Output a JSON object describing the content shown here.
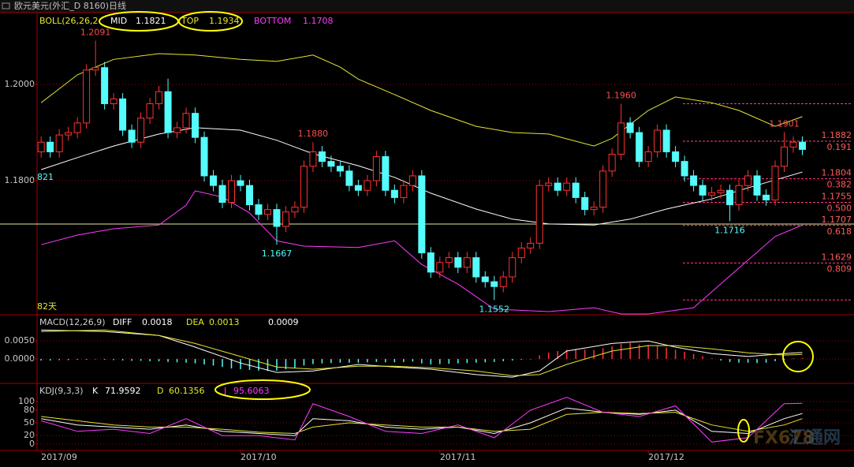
{
  "header": {
    "title": "欧元美元(外汇_D 8160)日线"
  },
  "watermark": [
    "FX678",
    "汇通网"
  ],
  "chart_data": [
    {
      "type": "candlestick",
      "indicator": "BOLL(26,26,2",
      "cursor_label": "821",
      "bar_count_label": "82天",
      "xlim": [
        -0.45,
        89.7
      ],
      "ylim": [
        1.1523,
        1.2146
      ],
      "yticks": [
        {
          "value": 1.2,
          "label": "1.2000"
        },
        {
          "value": 1.18,
          "label": "1.1800"
        }
      ],
      "grid": true,
      "up_color": "#ff3232",
      "down_color": "#54fcfc",
      "open": [
        1.186,
        1.188,
        1.186,
        1.1895,
        1.19,
        1.192,
        1.203,
        1.2035,
        1.196,
        1.197,
        1.1905,
        1.188,
        1.193,
        1.196,
        1.1985,
        1.19,
        1.191,
        1.194,
        1.189,
        1.181,
        1.179,
        1.1755,
        1.18,
        1.179,
        1.175,
        1.173,
        1.174,
        1.1705,
        1.1735,
        1.1745,
        1.183,
        1.186,
        1.184,
        1.183,
        1.182,
        1.179,
        1.178,
        1.18,
        1.185,
        1.178,
        1.1765,
        1.179,
        1.181,
        1.165,
        1.161,
        1.163,
        1.164,
        1.162,
        1.164,
        1.16,
        1.159,
        1.158,
        1.16,
        1.164,
        1.166,
        1.167,
        1.179,
        1.1795,
        1.178,
        1.1795,
        1.1765,
        1.174,
        1.1745,
        1.182,
        1.1855,
        1.192,
        1.19,
        1.184,
        1.186,
        1.1905,
        1.186,
        1.184,
        1.181,
        1.179,
        1.177,
        1.1775,
        1.178,
        1.175,
        1.179,
        1.181,
        1.177,
        1.176,
        1.183,
        1.187,
        1.188
      ],
      "high": [
        1.1892,
        1.1892,
        1.1907,
        1.1912,
        1.1932,
        1.2042,
        1.2091,
        1.2047,
        1.1982,
        1.1982,
        1.1917,
        1.1942,
        1.1972,
        1.1997,
        1.2012,
        1.1922,
        1.1952,
        1.1952,
        1.1902,
        1.1822,
        1.1802,
        1.1812,
        1.1812,
        1.1802,
        1.1762,
        1.1752,
        1.1752,
        1.1747,
        1.1757,
        1.1842,
        1.188,
        1.1872,
        1.1852,
        1.1842,
        1.1832,
        1.1802,
        1.1812,
        1.1862,
        1.1862,
        1.1792,
        1.1802,
        1.1822,
        1.1822,
        1.1662,
        1.1642,
        1.1652,
        1.1652,
        1.1652,
        1.1652,
        1.1612,
        1.1602,
        1.1612,
        1.1652,
        1.1672,
        1.1682,
        1.1802,
        1.1807,
        1.1807,
        1.1807,
        1.1807,
        1.1777,
        1.1757,
        1.1832,
        1.1867,
        1.196,
        1.1932,
        1.1912,
        1.1872,
        1.1917,
        1.1917,
        1.1872,
        1.1852,
        1.1822,
        1.1802,
        1.1787,
        1.1792,
        1.1792,
        1.1802,
        1.1822,
        1.1822,
        1.1782,
        1.1842,
        1.1901,
        1.1892,
        1.1892
      ],
      "low": [
        1.1848,
        1.1848,
        1.1848,
        1.1883,
        1.1888,
        1.1908,
        1.2018,
        1.1948,
        1.1948,
        1.1893,
        1.1868,
        1.1868,
        1.1918,
        1.1948,
        1.1888,
        1.1888,
        1.1898,
        1.1878,
        1.1798,
        1.1778,
        1.1743,
        1.1743,
        1.1778,
        1.1738,
        1.1718,
        1.1718,
        1.1667,
        1.1693,
        1.1723,
        1.1733,
        1.1818,
        1.1828,
        1.1818,
        1.1808,
        1.1778,
        1.1768,
        1.1768,
        1.1788,
        1.1768,
        1.1753,
        1.1753,
        1.1778,
        1.1638,
        1.1598,
        1.1598,
        1.1618,
        1.1608,
        1.1608,
        1.1588,
        1.1578,
        1.1552,
        1.1568,
        1.1588,
        1.1628,
        1.1648,
        1.1658,
        1.1778,
        1.1768,
        1.1768,
        1.1753,
        1.1728,
        1.1728,
        1.1733,
        1.1808,
        1.1843,
        1.1888,
        1.1828,
        1.1828,
        1.1848,
        1.1848,
        1.1828,
        1.1798,
        1.1778,
        1.1758,
        1.1758,
        1.1763,
        1.1716,
        1.1738,
        1.1778,
        1.1758,
        1.1748,
        1.1748,
        1.1818,
        1.1858,
        1.1853
      ],
      "close": [
        1.188,
        1.186,
        1.1895,
        1.19,
        1.192,
        1.203,
        1.2035,
        1.196,
        1.197,
        1.1905,
        1.188,
        1.193,
        1.196,
        1.1985,
        1.19,
        1.191,
        1.194,
        1.189,
        1.181,
        1.179,
        1.1755,
        1.18,
        1.179,
        1.175,
        1.173,
        1.174,
        1.1705,
        1.1735,
        1.1745,
        1.183,
        1.186,
        1.184,
        1.183,
        1.182,
        1.179,
        1.178,
        1.18,
        1.185,
        1.178,
        1.1765,
        1.179,
        1.181,
        1.165,
        1.161,
        1.163,
        1.164,
        1.162,
        1.164,
        1.16,
        1.159,
        1.158,
        1.16,
        1.164,
        1.166,
        1.167,
        1.179,
        1.1795,
        1.178,
        1.1795,
        1.1765,
        1.174,
        1.1745,
        1.182,
        1.1855,
        1.192,
        1.19,
        1.184,
        1.186,
        1.1905,
        1.186,
        1.184,
        1.181,
        1.179,
        1.177,
        1.1775,
        1.178,
        1.175,
        1.179,
        1.181,
        1.177,
        1.176,
        1.183,
        1.187,
        1.188,
        1.1865
      ],
      "series": [
        {
          "name": "MID",
          "current": "1.1821",
          "color": "#ffffff",
          "x": [
            0,
            4,
            8,
            13,
            17,
            22,
            26,
            30,
            35,
            39,
            43,
            48,
            52,
            56,
            61,
            65,
            69,
            74,
            78,
            82,
            84
          ],
          "values": [
            1.1823,
            1.1848,
            1.1872,
            1.1897,
            1.191,
            1.1905,
            1.1884,
            1.1856,
            1.1831,
            1.1807,
            1.1774,
            1.1741,
            1.172,
            1.171,
            1.1708,
            1.172,
            1.1741,
            1.1762,
            1.1785,
            1.1807,
            1.1818
          ]
        },
        {
          "name": "TOP",
          "current": "1.1934",
          "color": "#e6e632",
          "x": [
            0,
            4,
            8,
            13,
            17,
            22,
            26,
            30,
            33,
            35,
            39,
            43,
            48,
            52,
            56,
            61,
            63,
            67,
            70,
            74,
            77,
            81,
            84
          ],
          "values": [
            1.1962,
            1.202,
            1.2052,
            1.2064,
            1.2061,
            1.2052,
            1.2048,
            1.2061,
            1.2036,
            1.2011,
            1.1979,
            1.1946,
            1.1913,
            1.19,
            1.1897,
            1.1872,
            1.1888,
            1.1946,
            1.1974,
            1.1962,
            1.1946,
            1.1913,
            1.1933
          ]
        },
        {
          "name": "BOTTOM",
          "current": "1.1708",
          "color": "#ff3cff",
          "x": [
            0,
            4,
            8,
            13,
            16,
            17,
            20,
            23,
            26,
            29,
            35,
            39,
            42,
            46,
            50,
            56,
            61,
            64,
            67,
            72,
            76,
            81,
            84
          ],
          "values": [
            1.1667,
            1.1687,
            1.17,
            1.1708,
            1.1749,
            1.1779,
            1.1766,
            1.1733,
            1.1675,
            1.1664,
            1.1661,
            1.1675,
            1.1626,
            1.1585,
            1.1533,
            1.1528,
            1.1536,
            1.1523,
            1.1523,
            1.1536,
            1.1602,
            1.1684,
            1.1708
          ]
        }
      ],
      "peak_labels": [
        1.2091,
        {
          "value": 1.188,
          "label": "1.1880"
        },
        {
          "value": 1.196,
          "label": "1.1960"
        },
        1.1901
      ],
      "trough_labels": [
        1.1667,
        1.1552,
        1.1716
      ],
      "reference_line": 1.171,
      "reference_color": "#e6e6a0",
      "fib_high": 1.196,
      "fib_low": 1.1552,
      "fib_color": "#ff3c8c",
      "fib_levels": [
        {
          "price": 1.1882,
          "ratio": "0.191"
        },
        {
          "price": 1.1804,
          "ratio": "0.382"
        },
        {
          "price": 1.1755,
          "ratio": "0.500"
        },
        {
          "price": 1.1707,
          "ratio": "0.618"
        },
        {
          "price": 1.1629,
          "ratio": "0.809"
        }
      ]
    },
    {
      "type": "macd",
      "indicator": "MACD(12,26,9)",
      "signal_value": "0.0009",
      "xlim": [
        -0.45,
        89.7
      ],
      "ylim": [
        -0.0065,
        0.012
      ],
      "yticks": [
        {
          "value": 0.005,
          "label": "0.0050"
        },
        {
          "value": 0,
          "label": "0.0000"
        }
      ],
      "grid": true,
      "up_color": "#ff3232",
      "down_color": "#54fcfc",
      "histogram": [
        -0.0004,
        -0.0004,
        -0.0003,
        -0.0003,
        -0.0002,
        -0.0002,
        -0.0001,
        -0.0002,
        -0.0003,
        -0.0004,
        -0.0005,
        -0.0005,
        -0.0006,
        -0.0006,
        -0.0008,
        -0.0009,
        -0.001,
        -0.0012,
        -0.0015,
        -0.0018,
        -0.0022,
        -0.0026,
        -0.0028,
        -0.003,
        -0.0032,
        -0.0033,
        -0.0032,
        -0.0028,
        -0.0024,
        -0.0018,
        -0.0014,
        -0.0012,
        -0.0011,
        -0.001,
        -0.001,
        -0.001,
        -0.0009,
        -0.0008,
        -0.0009,
        -0.0009,
        -0.0008,
        -0.0007,
        -0.0012,
        -0.0015,
        -0.0014,
        -0.0013,
        -0.0012,
        -0.0011,
        -0.001,
        -0.0009,
        -0.0008,
        -0.0006,
        -0.0004,
        -0.0002,
        -0.0001,
        0.001,
        0.0018,
        0.0022,
        0.0026,
        0.0028,
        0.0026,
        0.0025,
        0.003,
        0.0035,
        0.0042,
        0.0044,
        0.004,
        0.0038,
        0.0036,
        0.0032,
        0.0026,
        0.002,
        0.0014,
        0.0008,
        0.0002,
        -0.0004,
        -0.0008,
        -0.001,
        -0.001,
        -0.0011,
        -0.001,
        -0.0006,
        -0.0002,
        0.0002,
        0.0003
      ],
      "series": [
        {
          "name": "DIFF",
          "current": "0.0018",
          "color": "#ffffff",
          "x": [
            0,
            7,
            13,
            17,
            22,
            26,
            30,
            35,
            39,
            43,
            48,
            52,
            55,
            58,
            63,
            67,
            70,
            74,
            78,
            82,
            84
          ],
          "values": [
            0.008,
            0.0076,
            0.0065,
            0.0033,
            -0.0011,
            -0.0037,
            -0.0033,
            -0.0015,
            -0.0022,
            -0.0028,
            -0.0043,
            -0.005,
            -0.0033,
            0.0022,
            0.0043,
            0.005,
            0.0033,
            0.0015,
            0.0007,
            0.0015,
            0.0018
          ]
        },
        {
          "name": "DEA",
          "current": "0.0013",
          "color": "#e6e632",
          "x": [
            0,
            7,
            13,
            17,
            22,
            26,
            30,
            35,
            39,
            43,
            48,
            52,
            55,
            58,
            63,
            67,
            70,
            74,
            78,
            82,
            84
          ],
          "values": [
            0.0076,
            0.008,
            0.0065,
            0.0043,
            0.0007,
            -0.0022,
            -0.0028,
            -0.002,
            -0.002,
            -0.0024,
            -0.0033,
            -0.0046,
            -0.0043,
            -0.0015,
            0.0022,
            0.0037,
            0.0037,
            0.0028,
            0.0017,
            0.0011,
            0.0013
          ]
        }
      ]
    },
    {
      "type": "kdj",
      "indicator": "KDJ(9,3,3)",
      "xlim": [
        -0.45,
        89.7
      ],
      "ylim": [
        -13,
        141
      ],
      "yticks": [
        100,
        80,
        50,
        20,
        0
      ],
      "grid": true,
      "xticks": [
        {
          "value": 0,
          "label": "2017/09"
        },
        {
          "value": 22,
          "label": "2017/10"
        },
        {
          "value": 44,
          "label": "2017/11"
        },
        {
          "value": 67,
          "label": "2017/12"
        }
      ],
      "series": [
        {
          "name": "K",
          "current": "71.9592",
          "color": "#ffffff",
          "x": [
            0,
            4,
            8,
            12,
            16,
            20,
            24,
            28,
            30,
            34,
            38,
            42,
            46,
            50,
            54,
            58,
            62,
            66,
            70,
            74,
            78,
            82,
            84
          ],
          "values": [
            60,
            45,
            40,
            35,
            45,
            30,
            25,
            20,
            60,
            55,
            40,
            35,
            40,
            25,
            50,
            85,
            75,
            70,
            80,
            30,
            25,
            60,
            72
          ]
        },
        {
          "name": "D",
          "current": "60.1356",
          "color": "#e6e632",
          "x": [
            0,
            4,
            8,
            12,
            16,
            20,
            24,
            28,
            30,
            34,
            38,
            42,
            46,
            50,
            54,
            58,
            62,
            66,
            70,
            74,
            78,
            82,
            84
          ],
          "values": [
            65,
            55,
            45,
            40,
            40,
            35,
            28,
            25,
            40,
            50,
            45,
            40,
            40,
            30,
            35,
            70,
            75,
            72,
            75,
            45,
            30,
            45,
            60
          ]
        },
        {
          "name": "J",
          "current": "95.6063",
          "color": "#ff3cff",
          "x": [
            0,
            4,
            8,
            12,
            16,
            20,
            24,
            28,
            30,
            34,
            38,
            42,
            46,
            50,
            54,
            58,
            62,
            66,
            70,
            74,
            78,
            82,
            84
          ],
          "values": [
            55,
            30,
            35,
            25,
            60,
            20,
            20,
            10,
            95,
            65,
            30,
            25,
            45,
            15,
            80,
            110,
            75,
            65,
            90,
            5,
            15,
            95,
            96
          ]
        }
      ]
    }
  ]
}
